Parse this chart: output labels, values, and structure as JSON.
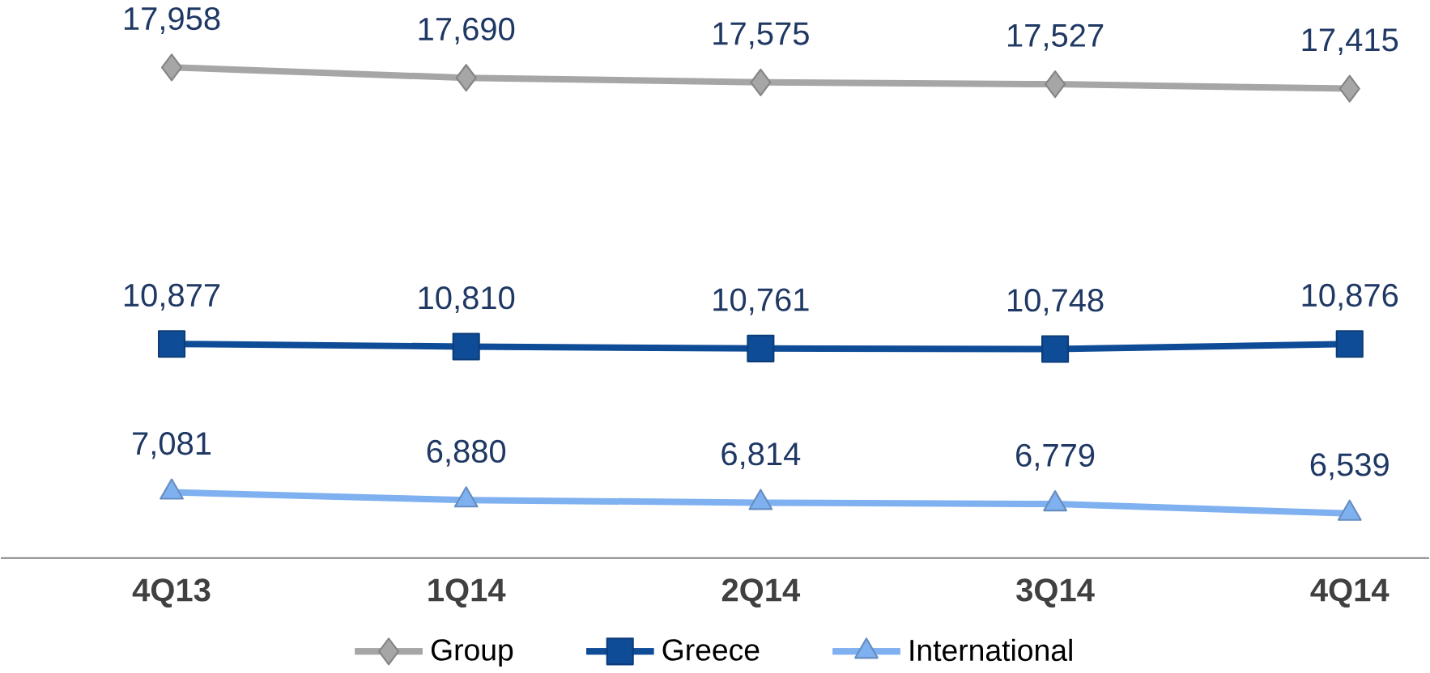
{
  "chart_data": {
    "type": "line",
    "categories": [
      "4Q13",
      "1Q14",
      "2Q14",
      "3Q14",
      "4Q14"
    ],
    "series": [
      {
        "name": "Group",
        "color": "#a6a6a6",
        "marker": "diamond",
        "values": [
          17958,
          17690,
          17575,
          17527,
          17415
        ],
        "value_labels": [
          "17,958",
          "17,690",
          "17,575",
          "17,527",
          "17,415"
        ]
      },
      {
        "name": "Greece",
        "color": "#0f4c97",
        "marker": "square",
        "values": [
          10877,
          10810,
          10761,
          10748,
          10876
        ],
        "value_labels": [
          "10,877",
          "10,810",
          "10,761",
          "10,748",
          "10,876"
        ]
      },
      {
        "name": "International",
        "color": "#7fb0f0",
        "marker": "triangle",
        "values": [
          7081,
          6880,
          6814,
          6779,
          6539
        ],
        "value_labels": [
          "7,081",
          "6,880",
          "6,814",
          "6,779",
          "6,539"
        ]
      }
    ],
    "legend": "bottom",
    "line_style": "solid"
  }
}
